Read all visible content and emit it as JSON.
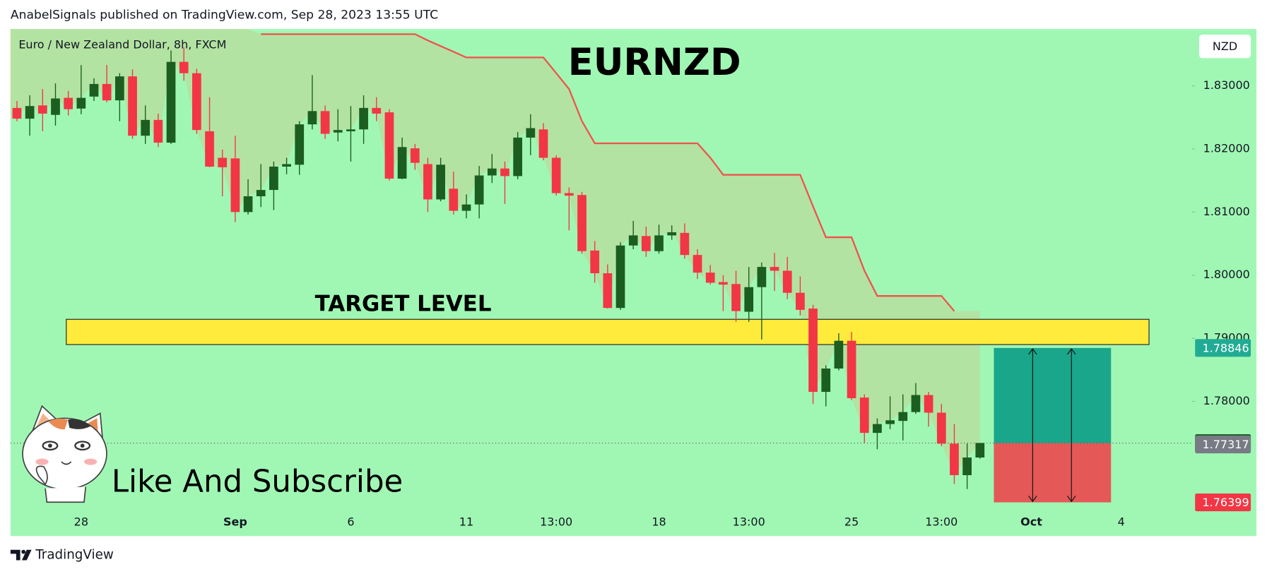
{
  "header": {
    "publisher": "AnabelSignals published on TradingView.com, Sep 28, 2023 13:55 UTC"
  },
  "chart_data": {
    "type": "candlestick",
    "title": "EURNZD",
    "symbol_label": "Euro / New Zealand Dollar, 8h, FXCM",
    "currency": "NZD",
    "annotation": "Like And Subscribe",
    "categories": [
      null,
      null,
      null,
      null,
      null,
      "28",
      null,
      null,
      null,
      null,
      null,
      null,
      null,
      null,
      null,
      null,
      null,
      "Sep",
      null,
      null,
      null,
      null,
      null,
      null,
      null,
      null,
      "6",
      null,
      null,
      null,
      null,
      null,
      null,
      null,
      null,
      "11",
      null,
      null,
      null,
      null,
      null,
      null,
      "13:00",
      null,
      null,
      null,
      null,
      null,
      null,
      null,
      "18",
      null,
      null,
      null,
      null,
      null,
      null,
      "13:00",
      null,
      null,
      null,
      null,
      null,
      null,
      null,
      "25",
      null,
      null,
      null,
      null,
      null,
      null,
      "13:00",
      null,
      null,
      null,
      null,
      null,
      null,
      "Oct",
      null,
      null,
      null,
      null,
      null,
      null,
      "4",
      null,
      null,
      null,
      null,
      null
    ],
    "open": [
      1.8265,
      1.8248,
      1.8269,
      1.8254,
      1.8281,
      1.8264,
      1.8283,
      1.8303,
      1.8277,
      1.8315,
      1.8221,
      1.8246,
      1.821,
      1.8338,
      1.832,
      1.8228,
      1.8186,
      1.8185,
      1.81,
      1.8125,
      1.8135,
      1.8172,
      1.8175,
      1.8239,
      1.826,
      1.8226,
      1.8228,
      1.8231,
      1.8265,
      1.8258,
      1.8153,
      1.8201,
      1.8176,
      1.812,
      1.8137,
      1.8102,
      1.8112,
      1.8158,
      1.8169,
      1.8157,
      1.8218,
      1.8231,
      1.8186,
      1.813,
      1.8127,
      1.8039,
      1.8003,
      1.7948,
      1.8047,
      1.8062,
      1.8038,
      1.8063,
      1.8067,
      1.8032,
      1.8004,
      1.7989,
      1.7986,
      1.7942,
      1.7981,
      1.8013,
      1.8007,
      1.7972,
      1.7947,
      1.7815,
      1.7852,
      1.7896,
      1.7806,
      1.775,
      1.7764,
      1.7769,
      1.7783,
      1.781,
      1.7782,
      1.7733,
      1.7683,
      1.7711,
      null,
      null,
      null,
      null,
      null,
      null,
      null,
      null,
      null,
      null,
      null,
      null,
      null,
      null,
      null,
      null
    ],
    "high": [
      1.8276,
      1.8285,
      1.8295,
      1.8304,
      1.8292,
      1.8333,
      1.8312,
      1.8333,
      1.832,
      1.8326,
      1.8269,
      1.8256,
      1.8356,
      1.8361,
      1.8327,
      1.8282,
      1.8199,
      1.8221,
      1.8152,
      1.8176,
      1.818,
      1.8186,
      1.8244,
      1.8317,
      1.8269,
      1.8263,
      1.8268,
      1.8285,
      1.8282,
      1.8263,
      1.8218,
      1.8208,
      1.8186,
      1.8186,
      1.8164,
      1.8128,
      1.8173,
      1.8192,
      1.818,
      1.8227,
      1.8255,
      1.8241,
      1.819,
      1.8139,
      1.8132,
      1.8054,
      1.8017,
      1.8052,
      1.8086,
      1.8077,
      1.808,
      1.8079,
      1.8082,
      1.8041,
      1.8016,
      1.8,
      1.8007,
      1.8013,
      1.802,
      1.8035,
      1.8029,
      1.7998,
      1.7953,
      1.7857,
      1.7908,
      1.791,
      1.7811,
      1.7773,
      1.7808,
      1.7811,
      1.7829,
      1.7815,
      1.7796,
      1.7764,
      1.7733,
      1.7734,
      null,
      null,
      null,
      null,
      null,
      null,
      null,
      null,
      null,
      null,
      null,
      null,
      null,
      null,
      null,
      null
    ],
    "low": [
      1.8244,
      1.8221,
      1.8228,
      1.8237,
      1.8253,
      1.8255,
      1.8276,
      1.8274,
      1.8244,
      1.8216,
      1.8208,
      1.8203,
      1.8208,
      1.8308,
      1.8224,
      1.8171,
      1.8125,
      1.8084,
      1.8096,
      1.8108,
      1.8103,
      1.816,
      1.8159,
      1.8231,
      1.8216,
      1.8212,
      1.818,
      1.8208,
      1.8244,
      1.815,
      1.8152,
      1.8167,
      1.81,
      1.8117,
      1.8096,
      1.809,
      1.809,
      1.8146,
      1.8113,
      1.8152,
      1.819,
      1.8182,
      1.8126,
      1.8071,
      1.8034,
      1.7988,
      1.7947,
      1.7945,
      1.8041,
      1.8029,
      1.8034,
      1.8056,
      1.8026,
      1.7994,
      1.7985,
      1.7943,
      1.7926,
      1.7926,
      1.7898,
      1.7975,
      1.7962,
      1.7936,
      1.7796,
      1.7792,
      1.7849,
      1.7802,
      1.7734,
      1.7724,
      1.7756,
      1.7738,
      1.778,
      1.776,
      1.7729,
      1.7669,
      1.7661,
      1.7709,
      null,
      null,
      null,
      null,
      null,
      null,
      null,
      null,
      null,
      null,
      null,
      null,
      null,
      null,
      null,
      null
    ],
    "close": [
      1.8248,
      1.8268,
      1.8256,
      1.828,
      1.8263,
      1.8281,
      1.8303,
      1.8277,
      1.8315,
      1.8221,
      1.8246,
      1.821,
      1.8338,
      1.832,
      1.823,
      1.8172,
      1.8171,
      1.81,
      1.8125,
      1.8135,
      1.8172,
      1.8176,
      1.8239,
      1.826,
      1.8224,
      1.823,
      1.8231,
      1.8265,
      1.8256,
      1.8153,
      1.8203,
      1.8178,
      1.812,
      1.8175,
      1.8102,
      1.8112,
      1.8158,
      1.8169,
      1.8157,
      1.8218,
      1.8233,
      1.8186,
      1.813,
      1.8126,
      1.8038,
      1.8003,
      1.7948,
      1.8047,
      1.8063,
      1.8038,
      1.8063,
      1.8068,
      1.8032,
      1.8004,
      1.7988,
      1.7985,
      1.7943,
      1.7981,
      1.8013,
      1.8007,
      1.7972,
      1.7945,
      1.7815,
      1.7852,
      1.7896,
      1.7805,
      1.775,
      1.7764,
      1.777,
      1.7783,
      1.781,
      1.7782,
      1.7733,
      1.7683,
      1.7711,
      1.7734,
      null,
      null,
      null,
      null,
      null,
      null,
      null,
      null,
      null,
      null,
      null,
      null,
      null,
      null,
      null,
      null
    ],
    "up_color": "#1b5e20",
    "down_color": "#f23645",
    "trend_line": {
      "color": "#f0524c",
      "fill": "#b5e0a0",
      "values": [
        null,
        null,
        null,
        null,
        null,
        null,
        null,
        null,
        null,
        null,
        null,
        null,
        null,
        null,
        null,
        null,
        null,
        null,
        null,
        1.8382,
        1.8382,
        1.8382,
        1.8382,
        1.8382,
        1.8382,
        1.8382,
        1.8382,
        1.8382,
        1.8382,
        1.8382,
        1.8382,
        1.8382,
        1.8372,
        1.8363,
        1.8354,
        1.8345,
        1.8345,
        1.8345,
        1.8345,
        1.8345,
        1.8345,
        1.8345,
        1.832,
        1.8295,
        1.8244,
        1.8209,
        1.8209,
        1.8209,
        1.8209,
        1.8209,
        1.8209,
        1.8209,
        1.8209,
        1.8209,
        1.8186,
        1.8159,
        1.8159,
        1.8159,
        1.8159,
        1.8159,
        1.8159,
        1.8159,
        1.8109,
        1.806,
        1.806,
        1.806,
        1.8007,
        1.7967,
        1.7967,
        1.7967,
        1.7967,
        1.7967,
        1.7967,
        1.7943,
        null,
        null,
        null,
        null,
        null,
        null,
        null,
        null,
        null,
        null,
        null,
        null,
        null,
        null,
        null,
        null,
        null,
        null
      ]
    },
    "ylim": [
      1.763,
      1.839
    ],
    "yticks": [
      {
        "value": 1.78,
        "label": "1.78000"
      },
      {
        "value": 1.79,
        "label": "1.79000"
      },
      {
        "value": 1.8,
        "label": "1.80000"
      },
      {
        "value": 1.81,
        "label": "1.81000"
      },
      {
        "value": 1.82,
        "label": "1.82000"
      },
      {
        "value": 1.83,
        "label": "1.83000"
      }
    ],
    "target_zone": {
      "label": "TARGET LEVEL",
      "range": [
        1.789,
        1.793
      ],
      "color": "#ffeb3b"
    },
    "position": {
      "take_profit": 1.78846,
      "entry": 1.77338,
      "stop_loss": 1.76399,
      "profit_color": "#1aa68a",
      "loss_color": "#e45858",
      "entry_label_color": "#1b5e20",
      "target_label_color": "#22ab94",
      "stop_label_color": "#f23645"
    },
    "prev_close": 1.77317,
    "prev_close_color": "#787b86",
    "background": "#a0f7b4"
  },
  "footer": {
    "brand": "TradingView"
  }
}
